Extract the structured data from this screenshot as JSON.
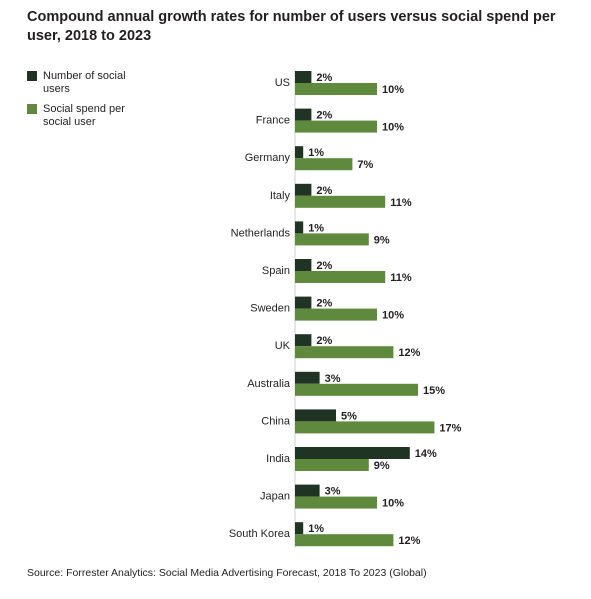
{
  "title": "Compound annual growth rates for number of users versus social spend per user, 2018 to 2023",
  "source": "Source: Forrester Analytics: Social Media Advertising Forecast, 2018 To 2023 (Global)",
  "colors": {
    "users": "#1f3423",
    "spend": "#5f8a3e"
  },
  "chart_data": {
    "type": "bar",
    "orientation": "horizontal",
    "categories": [
      "US",
      "France",
      "Germany",
      "Italy",
      "Netherlands",
      "Spain",
      "Sweden",
      "UK",
      "Australia",
      "China",
      "India",
      "Japan",
      "South Korea"
    ],
    "series": [
      {
        "name": "Number of social users",
        "values": [
          2,
          2,
          1,
          2,
          1,
          2,
          2,
          2,
          3,
          5,
          14,
          3,
          1
        ],
        "labels": [
          "2%",
          "2%",
          "1%",
          "2%",
          "1%",
          "2%",
          "2%",
          "2%",
          "3%",
          "5%",
          "14%",
          "3%",
          "1%"
        ]
      },
      {
        "name": "Social spend per social user",
        "values": [
          10,
          10,
          7,
          11,
          9,
          11,
          10,
          12,
          15,
          17,
          9,
          10,
          12
        ],
        "labels": [
          "10%",
          "10%",
          "7%",
          "11%",
          "9%",
          "11%",
          "10%",
          "12%",
          "15%",
          "17%",
          "9%",
          "10%",
          "12%"
        ]
      }
    ],
    "unit": "%",
    "xlim": [
      0,
      17
    ],
    "grid": false,
    "legend_position": "top-left"
  }
}
